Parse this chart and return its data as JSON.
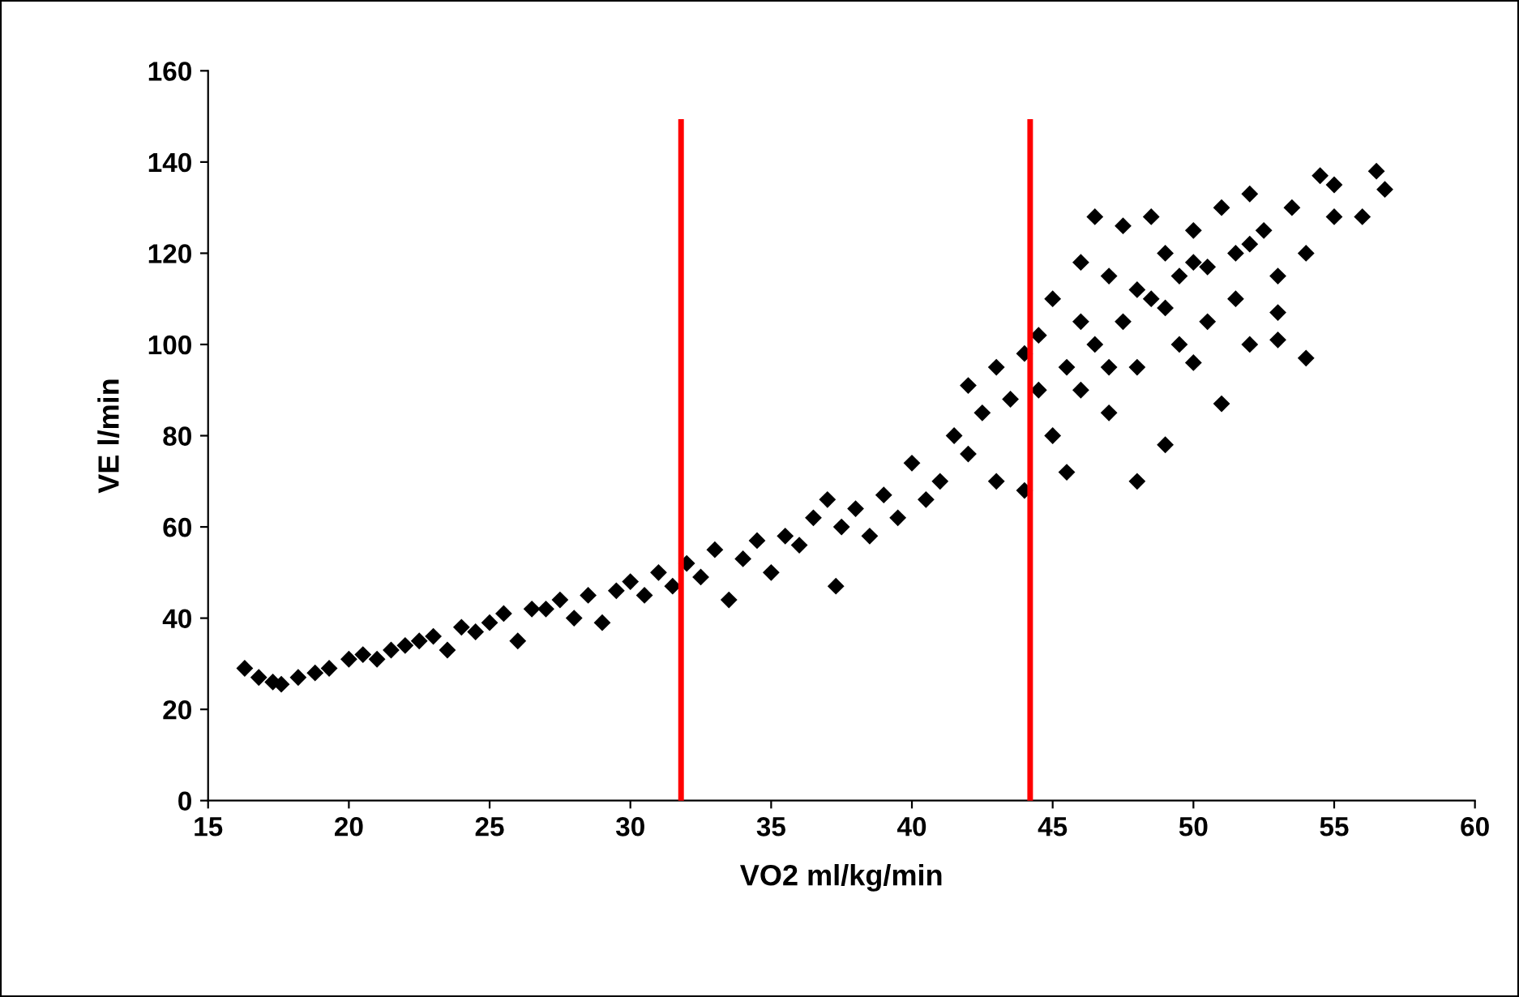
{
  "chart_data": {
    "type": "scatter",
    "xlabel": "VO2 ml/kg/min",
    "ylabel": "VE l/min",
    "xlim": [
      15,
      60
    ],
    "xticks": [
      15,
      20,
      25,
      30,
      35,
      40,
      45,
      50,
      55,
      60
    ],
    "ylim": [
      0,
      160
    ],
    "yticks": [
      0,
      20,
      40,
      60,
      80,
      100,
      120,
      140,
      160
    ],
    "grid": false,
    "legend": false,
    "marker": "diamond",
    "series": [
      {
        "color": "#000000",
        "x": [
          16.3,
          16.8,
          17.3,
          17.6,
          18.2,
          18.8,
          19.3,
          20,
          20.5,
          21,
          21.5,
          22,
          22.5,
          23,
          23.5,
          24,
          24.5,
          25,
          25.5,
          26,
          26.5,
          27,
          27.5,
          28,
          28.5,
          29,
          29.5,
          30,
          30.5,
          31,
          31.5,
          32,
          32.5,
          33,
          33.5,
          34,
          34.5,
          35,
          35.5,
          36,
          36.5,
          37,
          37.3,
          37.5,
          38,
          38.5,
          39,
          39.5,
          40,
          40.5,
          41,
          41.5,
          42,
          42,
          42.5,
          43,
          43,
          43.5,
          44,
          44,
          44.5,
          45,
          45,
          45.5,
          45.5,
          46,
          46,
          46.5,
          46.5,
          47,
          47,
          47.5,
          47.5,
          48,
          48,
          48.5,
          48.5,
          49,
          49,
          49.5,
          49.5,
          50,
          50,
          50.5,
          50.5,
          51,
          51,
          51.5,
          51.5,
          52,
          52,
          52.5,
          53,
          53,
          53.5,
          54,
          54,
          54.5,
          55,
          55,
          56,
          56.5,
          56.8,
          44.5,
          46,
          47,
          48,
          49,
          50,
          52,
          53
        ],
        "values": [
          29,
          27,
          26,
          25.5,
          27,
          28,
          29,
          31,
          32,
          31,
          33,
          34,
          35,
          36,
          33,
          38,
          37,
          39,
          41,
          35,
          42,
          42,
          44,
          40,
          45,
          39,
          46,
          48,
          45,
          50,
          47,
          52,
          49,
          55,
          44,
          53,
          57,
          50,
          58,
          56,
          62,
          66,
          47,
          60,
          64,
          58,
          67,
          62,
          74,
          66,
          70,
          80,
          76,
          91,
          85,
          95,
          70,
          88,
          68,
          98,
          102,
          80,
          110,
          95,
          72,
          118,
          90,
          128,
          100,
          85,
          115,
          105,
          126,
          70,
          95,
          128,
          110,
          78,
          120,
          100,
          115,
          96,
          125,
          105,
          117,
          87,
          130,
          120,
          110,
          100,
          133,
          125,
          101,
          115,
          130,
          120,
          97,
          137,
          128,
          135,
          128,
          138,
          134,
          90,
          105,
          95,
          112,
          108,
          118,
          122,
          107
        ]
      }
    ],
    "ref_lines": [
      {
        "axis": "x",
        "value": 31.8,
        "color": "#ff0000"
      },
      {
        "axis": "x",
        "value": 44.2,
        "color": "#ff0000"
      }
    ]
  }
}
